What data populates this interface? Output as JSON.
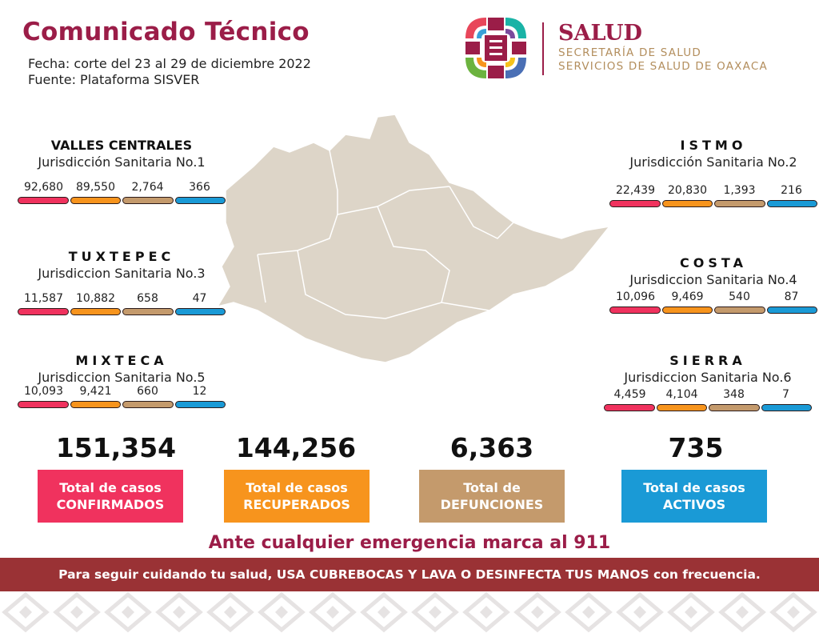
{
  "header": {
    "title": "Comunicado Técnico",
    "fecha": "Fecha: corte del 23 al 29 de diciembre 2022",
    "fuente": "Fuente: Plataforma SISVER"
  },
  "logo": {
    "name": "SALUD",
    "line1": "SECRETARÍA DE SALUD",
    "line2": "SERVICIOS DE SALUD DE OAXACA"
  },
  "colors": {
    "confirmados": "#f0325e",
    "recuperados": "#f7941d",
    "defunciones": "#c49a6c",
    "activos": "#1a9ad6",
    "brand": "#9b1d48",
    "band": "#9a3235",
    "map": "#ddd5c8"
  },
  "regions": [
    {
      "name": "VALLES CENTRALES",
      "jurisdiccion": "Jurisdicción Sanitaria No.1",
      "values": [
        "92,680",
        "89,550",
        "2,764",
        "366"
      ]
    },
    {
      "name": "ISTMO",
      "jurisdiccion": "Jurisdicción Sanitaria No.2",
      "values": [
        "22,439",
        "20,830",
        "1,393",
        "216"
      ]
    },
    {
      "name": "TUXTEPEC",
      "jurisdiccion": "Jurisdiccion Sanitaria No.3",
      "values": [
        "11,587",
        "10,882",
        "658",
        "47"
      ]
    },
    {
      "name": "COSTA",
      "jurisdiccion": "Jurisdiccion Sanitaria No.4",
      "values": [
        "10,096",
        "9,469",
        "540",
        "87"
      ]
    },
    {
      "name": "MIXTECA",
      "jurisdiccion": "Jurisdiccion Sanitaria No.5",
      "values": [
        "10,093",
        "9,421",
        "660",
        "12"
      ]
    },
    {
      "name": "SIERRA",
      "jurisdiccion": "Jurisdiccion Sanitaria No.6",
      "values": [
        "4,459",
        "4,104",
        "348",
        "7"
      ]
    }
  ],
  "totals": [
    {
      "value": "151,354",
      "line1": "Total de casos",
      "line2": "CONFIRMADOS"
    },
    {
      "value": "144,256",
      "line1": "Total de casos",
      "line2": "RECUPERADOS"
    },
    {
      "value": "6,363",
      "line1": "Total de",
      "line2": "DEFUNCIONES"
    },
    {
      "value": "735",
      "line1": "Total de casos",
      "line2": "ACTIVOS"
    }
  ],
  "footer": {
    "emergency": "Ante cualquier emergencia marca al 911",
    "message": "Para seguir cuidando tu salud, USA CUBREBOCAS Y LAVA O DESINFECTA TUS MANOS con frecuencia."
  }
}
